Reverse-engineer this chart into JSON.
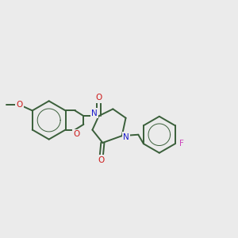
{
  "background_color": "#ebebeb",
  "bond_color": "#3a5f3a",
  "N_color": "#1a1acc",
  "O_color": "#cc1a1a",
  "F_color": "#cc44bb",
  "line_width": 1.4,
  "figsize": [
    3.0,
    3.0
  ],
  "dpi": 100,
  "xlim": [
    0,
    10
  ],
  "ylim": [
    2.5,
    8.0
  ]
}
